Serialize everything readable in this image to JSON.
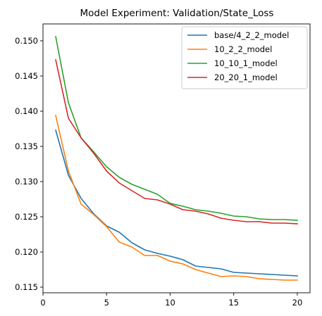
{
  "chart_data": {
    "type": "line",
    "title": "Model Experiment: Validation/State_Loss",
    "xlabel": "",
    "ylabel": "",
    "xlim": [
      0,
      21
    ],
    "ylim": [
      0.1142,
      0.1524
    ],
    "xticks": [
      0,
      5,
      10,
      15,
      20
    ],
    "yticks": [
      0.115,
      0.12,
      0.125,
      0.13,
      0.135,
      0.14,
      0.145,
      0.15
    ],
    "grid": false,
    "legend": "top-right",
    "x": [
      1,
      2,
      3,
      4,
      5,
      6,
      7,
      8,
      9,
      10,
      11,
      12,
      13,
      14,
      15,
      16,
      17,
      18,
      19,
      20
    ],
    "series": [
      {
        "name": "base/4_2_2_model",
        "color": "#1f77b4",
        "values": [
          0.1373,
          0.1309,
          0.1276,
          0.1254,
          0.1237,
          0.1228,
          0.1213,
          0.1203,
          0.1198,
          0.1194,
          0.1189,
          0.118,
          0.1178,
          0.1176,
          0.1171,
          0.117,
          0.1169,
          0.1168,
          0.1167,
          0.1166
        ]
      },
      {
        "name": "10_2_2_model",
        "color": "#ff7f0e",
        "values": [
          0.1394,
          0.1315,
          0.1268,
          0.1253,
          0.1236,
          0.1214,
          0.1207,
          0.1195,
          0.1195,
          0.1187,
          0.1183,
          0.1175,
          0.117,
          0.1165,
          0.1166,
          0.1165,
          0.1162,
          0.1161,
          0.116,
          0.116
        ]
      },
      {
        "name": "10_10_1_model",
        "color": "#2ca02c",
        "values": [
          0.1506,
          0.1412,
          0.1362,
          0.1342,
          0.1321,
          0.1306,
          0.1296,
          0.1289,
          0.1282,
          0.1269,
          0.1265,
          0.126,
          0.1258,
          0.1255,
          0.1251,
          0.125,
          0.1247,
          0.1246,
          0.1246,
          0.1245
        ]
      },
      {
        "name": "20_20_1_model",
        "color": "#d62728",
        "values": [
          0.1473,
          0.139,
          0.1362,
          0.134,
          0.1315,
          0.1298,
          0.1287,
          0.1276,
          0.1274,
          0.1268,
          0.126,
          0.1258,
          0.1254,
          0.1248,
          0.1245,
          0.1243,
          0.1243,
          0.1241,
          0.1241,
          0.124
        ]
      }
    ]
  }
}
